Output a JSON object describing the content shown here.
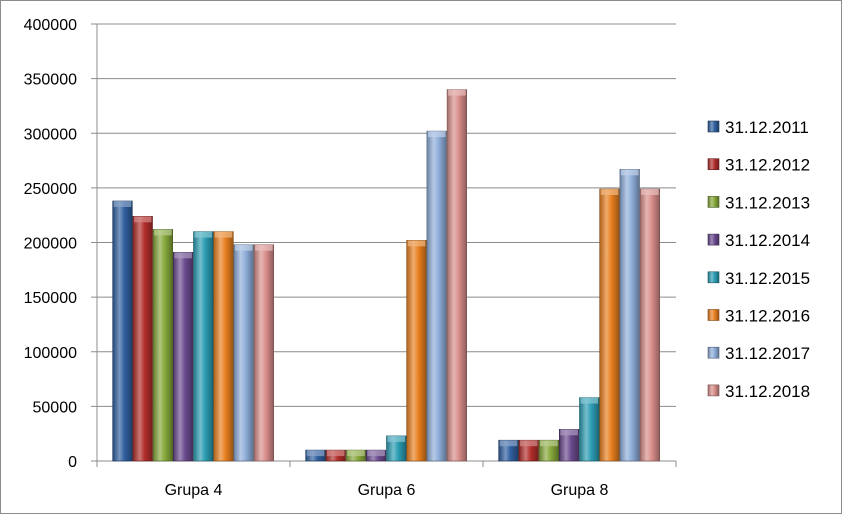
{
  "chart_data": {
    "type": "bar",
    "title": "",
    "xlabel": "",
    "ylabel": "",
    "ylim": [
      0,
      400000
    ],
    "yticks": [
      0,
      50000,
      100000,
      150000,
      200000,
      250000,
      300000,
      350000,
      400000
    ],
    "ytick_labels": [
      "0",
      "50000",
      "100000",
      "150000",
      "200000",
      "250000",
      "300000",
      "350000",
      "400000"
    ],
    "grid": true,
    "legend_position": "right",
    "categories": [
      "Grupa 4",
      "Grupa 6",
      "Grupa 8"
    ],
    "series": [
      {
        "name": "31.12.2011",
        "color": "#2F5F9F",
        "values": [
          238000,
          10000,
          19000
        ]
      },
      {
        "name": "31.12.2012",
        "color": "#B22E2B",
        "values": [
          224000,
          10000,
          19000
        ]
      },
      {
        "name": "31.12.2013",
        "color": "#86A83A",
        "values": [
          212000,
          10000,
          19000
        ]
      },
      {
        "name": "31.12.2014",
        "color": "#6A4A8E",
        "values": [
          191000,
          10000,
          29000
        ]
      },
      {
        "name": "31.12.2015",
        "color": "#2B9DB3",
        "values": [
          210000,
          23000,
          58000
        ]
      },
      {
        "name": "31.12.2016",
        "color": "#E8801E",
        "values": [
          210000,
          202000,
          249000
        ]
      },
      {
        "name": "31.12.2017",
        "color": "#8FAEDA",
        "values": [
          198000,
          302000,
          267000
        ]
      },
      {
        "name": "31.12.2018",
        "color": "#D98E8A",
        "values": [
          198000,
          340000,
          249000
        ]
      }
    ]
  }
}
